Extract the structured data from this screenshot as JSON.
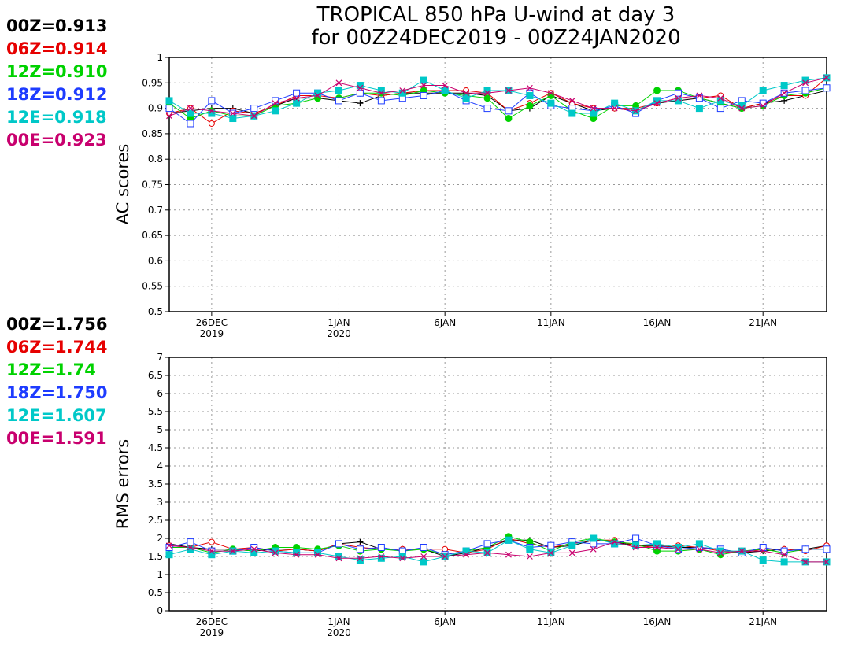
{
  "title": {
    "line1": "TROPICAL 850 hPa U-wind at day 3",
    "line2": "for 00Z24DEC2019 - 00Z24JAN2020"
  },
  "colors": {
    "00Z": "#000000",
    "06Z": "#e60000",
    "12Z": "#00d200",
    "18Z": "#1e3cff",
    "12E": "#00c8c8",
    "00E": "#c8006e"
  },
  "chart_data": [
    {
      "type": "line",
      "ylabel": "AC scores",
      "ylim": [
        0.5,
        1.0
      ],
      "yticks": [
        "0.5",
        "0.55",
        "0.6",
        "0.65",
        "0.7",
        "0.75",
        "0.8",
        "0.85",
        "0.9",
        "0.95",
        "1"
      ],
      "xlim": [
        0,
        31
      ],
      "xticks": [
        {
          "x": 2,
          "label": "26DEC",
          "sub": "2019"
        },
        {
          "x": 8,
          "label": "1JAN",
          "sub": "2020"
        },
        {
          "x": 13,
          "label": "6JAN",
          "sub": ""
        },
        {
          "x": 18,
          "label": "11JAN",
          "sub": ""
        },
        {
          "x": 23,
          "label": "16JAN",
          "sub": ""
        },
        {
          "x": 28,
          "label": "21JAN",
          "sub": ""
        }
      ],
      "grid": true,
      "legend": [
        {
          "label": "00Z=0.913",
          "key": "00Z"
        },
        {
          "label": "06Z=0.914",
          "key": "06Z"
        },
        {
          "label": "12Z=0.910",
          "key": "12Z"
        },
        {
          "label": "18Z=0.912",
          "key": "18Z"
        },
        {
          "label": "12E=0.918",
          "key": "12E"
        },
        {
          "label": "00E=0.923",
          "key": "00E"
        }
      ],
      "series": [
        {
          "key": "00Z",
          "marker": "plus",
          "x": [
            0,
            1,
            2,
            3,
            4,
            5,
            6,
            7,
            8,
            9,
            10,
            11,
            12,
            13,
            14,
            15,
            16,
            17,
            18,
            19,
            20,
            21,
            22,
            23,
            24,
            25,
            26,
            27,
            28,
            29,
            30,
            31
          ],
          "values": [
            0.89,
            0.895,
            0.9,
            0.9,
            0.89,
            0.905,
            0.92,
            0.92,
            0.915,
            0.91,
            0.925,
            0.93,
            0.93,
            0.93,
            0.93,
            0.925,
            0.895,
            0.9,
            0.925,
            0.91,
            0.895,
            0.9,
            0.895,
            0.91,
            0.915,
            0.92,
            0.91,
            0.9,
            0.91,
            0.915,
            0.925,
            0.935
          ]
        },
        {
          "key": "06Z",
          "marker": "circle",
          "x": [
            0,
            1,
            2,
            3,
            4,
            5,
            6,
            7,
            8,
            9,
            10,
            11,
            12,
            13,
            14,
            15,
            16,
            17,
            18,
            19,
            20,
            21,
            22,
            23,
            24,
            25,
            26,
            27,
            28,
            29,
            30,
            31
          ],
          "values": [
            0.89,
            0.9,
            0.87,
            0.895,
            0.89,
            0.905,
            0.925,
            0.925,
            0.92,
            0.93,
            0.925,
            0.93,
            0.935,
            0.935,
            0.935,
            0.93,
            0.895,
            0.91,
            0.93,
            0.91,
            0.9,
            0.9,
            0.9,
            0.91,
            0.92,
            0.92,
            0.925,
            0.9,
            0.91,
            0.925,
            0.925,
            0.96
          ]
        },
        {
          "key": "12Z",
          "marker": "dot",
          "x": [
            0,
            1,
            2,
            3,
            4,
            5,
            6,
            7,
            8,
            9,
            10,
            11,
            12,
            13,
            14,
            15,
            16,
            17,
            18,
            19,
            20,
            21,
            22,
            23,
            24,
            25,
            26,
            27,
            28,
            29,
            30,
            31
          ],
          "values": [
            0.91,
            0.88,
            0.895,
            0.885,
            0.885,
            0.905,
            0.91,
            0.92,
            0.92,
            0.93,
            0.93,
            0.925,
            0.935,
            0.93,
            0.925,
            0.92,
            0.88,
            0.905,
            0.925,
            0.895,
            0.88,
            0.905,
            0.905,
            0.935,
            0.935,
            0.92,
            0.91,
            0.9,
            0.905,
            0.925,
            0.93,
            0.94
          ]
        },
        {
          "key": "18Z",
          "marker": "square",
          "x": [
            0,
            1,
            2,
            3,
            4,
            5,
            6,
            7,
            8,
            9,
            10,
            11,
            12,
            13,
            14,
            15,
            16,
            17,
            18,
            19,
            20,
            21,
            22,
            23,
            24,
            25,
            26,
            27,
            28,
            29,
            30,
            31
          ],
          "values": [
            0.9,
            0.87,
            0.915,
            0.89,
            0.9,
            0.915,
            0.93,
            0.93,
            0.915,
            0.93,
            0.915,
            0.92,
            0.925,
            0.935,
            0.915,
            0.9,
            0.895,
            0.93,
            0.905,
            0.9,
            0.895,
            0.905,
            0.89,
            0.915,
            0.93,
            0.92,
            0.9,
            0.915,
            0.91,
            0.93,
            0.935,
            0.94
          ]
        },
        {
          "key": "12E",
          "marker": "filledsquare",
          "x": [
            0,
            1,
            2,
            3,
            4,
            5,
            6,
            7,
            8,
            9,
            10,
            11,
            12,
            13,
            14,
            15,
            16,
            17,
            18,
            19,
            20,
            21,
            22,
            23,
            24,
            25,
            26,
            27,
            28,
            29,
            30,
            31
          ],
          "values": [
            0.915,
            0.89,
            0.89,
            0.88,
            0.885,
            0.895,
            0.91,
            0.93,
            0.935,
            0.945,
            0.935,
            0.93,
            0.955,
            0.935,
            0.92,
            0.935,
            0.935,
            0.925,
            0.91,
            0.89,
            0.89,
            0.91,
            0.895,
            0.915,
            0.915,
            0.9,
            0.915,
            0.905,
            0.935,
            0.945,
            0.955,
            0.96
          ]
        },
        {
          "key": "00E",
          "marker": "cross",
          "x": [
            0,
            1,
            2,
            3,
            4,
            5,
            6,
            7,
            8,
            9,
            10,
            11,
            12,
            13,
            14,
            15,
            16,
            17,
            18,
            19,
            20,
            21,
            22,
            23,
            24,
            25,
            26,
            27,
            28,
            29,
            30,
            31
          ],
          "values": [
            0.885,
            0.9,
            0.895,
            0.89,
            0.885,
            0.91,
            0.92,
            0.925,
            0.95,
            0.94,
            0.93,
            0.935,
            0.945,
            0.945,
            0.93,
            0.93,
            0.935,
            0.94,
            0.93,
            0.915,
            0.9,
            0.9,
            0.895,
            0.91,
            0.92,
            0.925,
            0.92,
            0.9,
            0.905,
            0.93,
            0.95,
            0.96
          ]
        }
      ]
    },
    {
      "type": "line",
      "ylabel": "RMS errors",
      "ylim": [
        0,
        7
      ],
      "yticks": [
        "0",
        "0.5",
        "1",
        "1.5",
        "2",
        "2.5",
        "3",
        "3.5",
        "4",
        "4.5",
        "5",
        "5.5",
        "6",
        "6.5",
        "7"
      ],
      "xlim": [
        0,
        31
      ],
      "xticks": [
        {
          "x": 2,
          "label": "26DEC",
          "sub": "2019"
        },
        {
          "x": 8,
          "label": "1JAN",
          "sub": "2020"
        },
        {
          "x": 13,
          "label": "6JAN",
          "sub": ""
        },
        {
          "x": 18,
          "label": "11JAN",
          "sub": ""
        },
        {
          "x": 23,
          "label": "16JAN",
          "sub": ""
        },
        {
          "x": 28,
          "label": "21JAN",
          "sub": ""
        }
      ],
      "grid": true,
      "legend": [
        {
          "label": "00Z=1.756",
          "key": "00Z"
        },
        {
          "label": "06Z=1.744",
          "key": "06Z"
        },
        {
          "label": "12Z=1.74",
          "key": "12Z"
        },
        {
          "label": "18Z=1.750",
          "key": "18Z"
        },
        {
          "label": "12E=1.607",
          "key": "12E"
        },
        {
          "label": "00E=1.591",
          "key": "00E"
        }
      ],
      "series": [
        {
          "key": "00Z",
          "marker": "plus",
          "x": [
            0,
            1,
            2,
            3,
            4,
            5,
            6,
            7,
            8,
            9,
            10,
            11,
            12,
            13,
            14,
            15,
            16,
            17,
            18,
            19,
            20,
            21,
            22,
            23,
            24,
            25,
            26,
            27,
            28,
            29,
            30,
            31
          ],
          "values": [
            1.85,
            1.75,
            1.7,
            1.7,
            1.65,
            1.7,
            1.7,
            1.65,
            1.85,
            1.9,
            1.7,
            1.7,
            1.7,
            1.5,
            1.6,
            1.75,
            1.95,
            1.95,
            1.75,
            1.8,
            1.95,
            1.9,
            1.8,
            1.8,
            1.75,
            1.75,
            1.7,
            1.6,
            1.65,
            1.7,
            1.7,
            1.8
          ]
        },
        {
          "key": "06Z",
          "marker": "circle",
          "x": [
            0,
            1,
            2,
            3,
            4,
            5,
            6,
            7,
            8,
            9,
            10,
            11,
            12,
            13,
            14,
            15,
            16,
            17,
            18,
            19,
            20,
            21,
            22,
            23,
            24,
            25,
            26,
            27,
            28,
            29,
            30,
            31
          ],
          "values": [
            1.8,
            1.75,
            1.9,
            1.7,
            1.75,
            1.65,
            1.7,
            1.65,
            1.85,
            1.75,
            1.7,
            1.7,
            1.7,
            1.7,
            1.6,
            1.7,
            2.0,
            1.85,
            1.75,
            1.85,
            1.95,
            1.95,
            1.8,
            1.75,
            1.8,
            1.75,
            1.65,
            1.6,
            1.7,
            1.7,
            1.65,
            1.8
          ]
        },
        {
          "key": "12Z",
          "marker": "dot",
          "x": [
            0,
            1,
            2,
            3,
            4,
            5,
            6,
            7,
            8,
            9,
            10,
            11,
            12,
            13,
            14,
            15,
            16,
            17,
            18,
            19,
            20,
            21,
            22,
            23,
            24,
            25,
            26,
            27,
            28,
            29,
            30,
            31
          ],
          "values": [
            1.75,
            1.75,
            1.6,
            1.7,
            1.65,
            1.75,
            1.75,
            1.7,
            1.8,
            1.65,
            1.7,
            1.65,
            1.7,
            1.55,
            1.65,
            1.75,
            2.05,
            1.9,
            1.65,
            1.9,
            2.0,
            1.9,
            1.85,
            1.65,
            1.65,
            1.7,
            1.55,
            1.65,
            1.7,
            1.6,
            1.7,
            1.7
          ]
        },
        {
          "key": "18Z",
          "marker": "square",
          "x": [
            0,
            1,
            2,
            3,
            4,
            5,
            6,
            7,
            8,
            9,
            10,
            11,
            12,
            13,
            14,
            15,
            16,
            17,
            18,
            19,
            20,
            21,
            22,
            23,
            24,
            25,
            26,
            27,
            28,
            29,
            30,
            31
          ],
          "values": [
            1.75,
            1.9,
            1.65,
            1.65,
            1.75,
            1.65,
            1.6,
            1.6,
            1.85,
            1.7,
            1.75,
            1.65,
            1.75,
            1.55,
            1.65,
            1.85,
            1.95,
            1.75,
            1.8,
            1.9,
            1.85,
            1.85,
            2.0,
            1.8,
            1.7,
            1.75,
            1.7,
            1.6,
            1.75,
            1.65,
            1.7,
            1.7
          ]
        },
        {
          "key": "12E",
          "marker": "filledsquare",
          "x": [
            0,
            1,
            2,
            3,
            4,
            5,
            6,
            7,
            8,
            9,
            10,
            11,
            12,
            13,
            14,
            15,
            16,
            17,
            18,
            19,
            20,
            21,
            22,
            23,
            24,
            25,
            26,
            27,
            28,
            29,
            30,
            31
          ],
          "values": [
            1.55,
            1.7,
            1.55,
            1.65,
            1.6,
            1.65,
            1.6,
            1.6,
            1.5,
            1.4,
            1.45,
            1.5,
            1.35,
            1.5,
            1.65,
            1.6,
            1.95,
            1.7,
            1.6,
            1.8,
            2.0,
            1.85,
            1.8,
            1.85,
            1.75,
            1.85,
            1.65,
            1.65,
            1.4,
            1.35,
            1.35,
            1.35
          ]
        },
        {
          "key": "00E",
          "marker": "cross",
          "x": [
            0,
            1,
            2,
            3,
            4,
            5,
            6,
            7,
            8,
            9,
            10,
            11,
            12,
            13,
            14,
            15,
            16,
            17,
            18,
            19,
            20,
            21,
            22,
            23,
            24,
            25,
            26,
            27,
            28,
            29,
            30,
            31
          ],
          "values": [
            1.8,
            1.75,
            1.65,
            1.65,
            1.7,
            1.6,
            1.55,
            1.55,
            1.45,
            1.45,
            1.5,
            1.45,
            1.5,
            1.5,
            1.55,
            1.6,
            1.55,
            1.5,
            1.6,
            1.6,
            1.7,
            1.9,
            1.75,
            1.75,
            1.7,
            1.7,
            1.6,
            1.65,
            1.65,
            1.55,
            1.35,
            1.35
          ]
        }
      ]
    }
  ]
}
